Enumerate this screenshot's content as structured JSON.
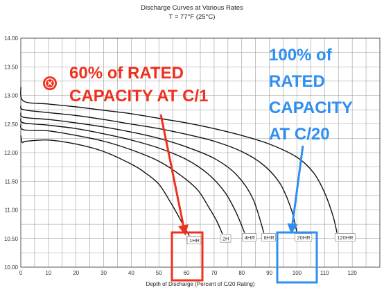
{
  "chart_data": {
    "type": "line",
    "title": "Discharge Curves at Various Rates",
    "subtitle": "T = 77°F (25°C)",
    "xlabel": "Depth of Discharge (Percent of C/20 Rating)",
    "ylabel": "",
    "xlim": [
      0,
      130
    ],
    "ylim": [
      10.0,
      14.0
    ],
    "x_ticks": [
      "0",
      "10",
      "20",
      "30",
      "40",
      "50",
      "60",
      "70",
      "80",
      "90",
      "100",
      "110",
      "120"
    ],
    "y_ticks": [
      "10.00",
      "10.50",
      "11.00",
      "11.50",
      "12.00",
      "12.50",
      "13.00",
      "13.50",
      "14.00"
    ],
    "grid": true,
    "series": [
      {
        "name": "1HR",
        "x": [
          0,
          0.5,
          2,
          10,
          20,
          30,
          40,
          45,
          50,
          54,
          57,
          59,
          61
        ],
        "y": [
          12.3,
          12.18,
          12.2,
          12.22,
          12.15,
          12.02,
          11.8,
          11.65,
          11.45,
          11.15,
          10.9,
          10.72,
          10.55
        ]
      },
      {
        "name": "2H",
        "x": [
          0,
          1,
          10,
          20,
          30,
          40,
          50,
          58,
          64,
          68,
          71,
          73
        ],
        "y": [
          12.5,
          12.4,
          12.38,
          12.3,
          12.2,
          12.05,
          11.85,
          11.6,
          11.35,
          11.05,
          10.8,
          10.58
        ]
      },
      {
        "name": "4HR",
        "x": [
          0,
          1,
          10,
          20,
          30,
          40,
          50,
          60,
          68,
          74,
          78,
          81
        ],
        "y": [
          12.6,
          12.52,
          12.48,
          12.42,
          12.33,
          12.22,
          12.08,
          11.88,
          11.62,
          11.3,
          10.95,
          10.6
        ]
      },
      {
        "name": "8HR",
        "x": [
          0,
          1,
          10,
          20,
          30,
          40,
          50,
          60,
          70,
          78,
          84,
          88
        ],
        "y": [
          12.7,
          12.62,
          12.58,
          12.52,
          12.45,
          12.36,
          12.25,
          12.1,
          11.9,
          11.62,
          11.2,
          10.6
        ]
      },
      {
        "name": "20HR",
        "x": [
          0,
          1,
          10,
          20,
          30,
          40,
          50,
          60,
          70,
          80,
          88,
          94,
          98,
          100
        ],
        "y": [
          12.82,
          12.75,
          12.7,
          12.65,
          12.58,
          12.5,
          12.42,
          12.32,
          12.2,
          12.02,
          11.78,
          11.45,
          11.0,
          10.6
        ]
      },
      {
        "name": "120HR",
        "x": [
          0,
          1,
          10,
          20,
          30,
          40,
          50,
          60,
          70,
          80,
          90,
          100,
          106,
          110,
          113,
          114.5
        ],
        "y": [
          13.15,
          12.9,
          12.85,
          12.8,
          12.74,
          12.68,
          12.6,
          12.52,
          12.42,
          12.3,
          12.15,
          11.92,
          11.65,
          11.3,
          10.9,
          10.6
        ]
      }
    ],
    "annotations": {
      "red_callout": [
        "60% of RATED",
        "CAPACITY AT C/1"
      ],
      "blue_callout": [
        "100% of",
        "RATED",
        "CAPACITY",
        "AT C/20"
      ]
    }
  },
  "colors": {
    "curve": "#111111",
    "grid": "#9a9a9a",
    "red_accent": "#f0301e",
    "blue_accent": "#2f8ff0"
  },
  "icons": {
    "red_marker": "close-circle-icon"
  }
}
